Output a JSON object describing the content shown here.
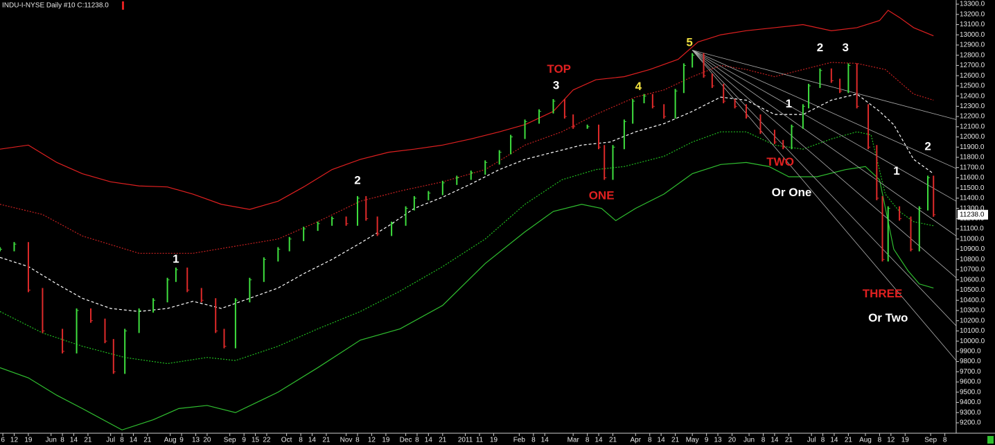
{
  "chart_data": {
    "type": "price",
    "title": "INDU-I-NYSE  Daily  #10 C:11238.0",
    "xlim": [
      0,
      337
    ],
    "ylim": [
      9098,
      13341
    ],
    "yticks": [
      {
        "value": 9200,
        "label": "9200.0"
      },
      {
        "value": 9300,
        "label": "9300.0"
      },
      {
        "value": 9400,
        "label": "9400.0"
      },
      {
        "value": 9500,
        "label": "9500.0"
      },
      {
        "value": 9600,
        "label": "9600.0"
      },
      {
        "value": 9700,
        "label": "9700.0"
      },
      {
        "value": 9800,
        "label": "9800.0"
      },
      {
        "value": 9900,
        "label": "9900.0"
      },
      {
        "value": 10000,
        "label": "10000.0"
      },
      {
        "value": 10100,
        "label": "10100.0"
      },
      {
        "value": 10200,
        "label": "10200.0"
      },
      {
        "value": 10300,
        "label": "10300.0"
      },
      {
        "value": 10400,
        "label": "10400.0"
      },
      {
        "value": 10500,
        "label": "10500.0"
      },
      {
        "value": 10600,
        "label": "10600.0"
      },
      {
        "value": 10700,
        "label": "10700.0"
      },
      {
        "value": 10800,
        "label": "10800.0"
      },
      {
        "value": 10900,
        "label": "10900.0"
      },
      {
        "value": 11000,
        "label": "11000.0"
      },
      {
        "value": 11100,
        "label": "11100.0"
      },
      {
        "value": 11200,
        "label": "11200.0"
      },
      {
        "value": 11300,
        "label": "11300.0"
      },
      {
        "value": 11400,
        "label": "11400.0"
      },
      {
        "value": 11500,
        "label": "11500.0"
      },
      {
        "value": 11600,
        "label": "11600.0"
      },
      {
        "value": 11700,
        "label": "11700.0"
      },
      {
        "value": 11800,
        "label": "11800.0"
      },
      {
        "value": 11900,
        "label": "11900.0"
      },
      {
        "value": 12000,
        "label": "12000.0"
      },
      {
        "value": 12100,
        "label": "12100.0"
      },
      {
        "value": 12200,
        "label": "12200.0"
      },
      {
        "value": 12300,
        "label": "12300.0"
      },
      {
        "value": 12400,
        "label": "12400.0"
      },
      {
        "value": 12500,
        "label": "12500.0"
      },
      {
        "value": 12600,
        "label": "12600.0"
      },
      {
        "value": 12700,
        "label": "12700.0"
      },
      {
        "value": 12800,
        "label": "12800.0"
      },
      {
        "value": 12900,
        "label": "12900.0"
      },
      {
        "value": 13000,
        "label": "13000.0"
      },
      {
        "value": 13100,
        "label": "13100.0"
      },
      {
        "value": 13200,
        "label": "13200.0"
      },
      {
        "value": 13300,
        "label": "13300.0"
      }
    ],
    "xticks": [
      {
        "value": 1,
        "label": "6"
      },
      {
        "value": 5,
        "label": "12"
      },
      {
        "value": 10,
        "label": "19"
      },
      {
        "value": 18,
        "label": "Jun"
      },
      {
        "value": 22,
        "label": "8"
      },
      {
        "value": 26,
        "label": "14"
      },
      {
        "value": 31,
        "label": "21"
      },
      {
        "value": 39,
        "label": "Jul"
      },
      {
        "value": 43,
        "label": "8"
      },
      {
        "value": 47,
        "label": "14"
      },
      {
        "value": 52,
        "label": "21"
      },
      {
        "value": 60,
        "label": "Aug"
      },
      {
        "value": 64,
        "label": "9"
      },
      {
        "value": 69,
        "label": "13"
      },
      {
        "value": 73,
        "label": "20"
      },
      {
        "value": 81,
        "label": "Sep"
      },
      {
        "value": 86,
        "label": "9"
      },
      {
        "value": 90,
        "label": "15"
      },
      {
        "value": 94,
        "label": "22"
      },
      {
        "value": 101,
        "label": "Oct"
      },
      {
        "value": 106,
        "label": "8"
      },
      {
        "value": 110,
        "label": "14"
      },
      {
        "value": 115,
        "label": "21"
      },
      {
        "value": 122,
        "label": "Nov"
      },
      {
        "value": 126,
        "label": "8"
      },
      {
        "value": 131,
        "label": "12"
      },
      {
        "value": 136,
        "label": "19"
      },
      {
        "value": 143,
        "label": "Dec"
      },
      {
        "value": 147,
        "label": "8"
      },
      {
        "value": 151,
        "label": "14"
      },
      {
        "value": 156,
        "label": "21"
      },
      {
        "value": 164,
        "label": "2011"
      },
      {
        "value": 169,
        "label": "11"
      },
      {
        "value": 174,
        "label": "19"
      },
      {
        "value": 183,
        "label": "Feb"
      },
      {
        "value": 188,
        "label": "8"
      },
      {
        "value": 192,
        "label": "14"
      },
      {
        "value": 202,
        "label": "Mar"
      },
      {
        "value": 207,
        "label": "8"
      },
      {
        "value": 211,
        "label": "14"
      },
      {
        "value": 216,
        "label": "21"
      },
      {
        "value": 224,
        "label": "Apr"
      },
      {
        "value": 229,
        "label": "8"
      },
      {
        "value": 233,
        "label": "14"
      },
      {
        "value": 238,
        "label": "21"
      },
      {
        "value": 244,
        "label": "May"
      },
      {
        "value": 249,
        "label": "9"
      },
      {
        "value": 253,
        "label": "13"
      },
      {
        "value": 258,
        "label": "20"
      },
      {
        "value": 264,
        "label": "Jun"
      },
      {
        "value": 269,
        "label": "8"
      },
      {
        "value": 273,
        "label": "14"
      },
      {
        "value": 278,
        "label": "21"
      },
      {
        "value": 286,
        "label": "Jul"
      },
      {
        "value": 290,
        "label": "8"
      },
      {
        "value": 294,
        "label": "14"
      },
      {
        "value": 299,
        "label": "21"
      },
      {
        "value": 305,
        "label": "Aug"
      },
      {
        "value": 310,
        "label": "8"
      },
      {
        "value": 314,
        "label": "12"
      },
      {
        "value": 319,
        "label": "19"
      },
      {
        "value": 328,
        "label": "Sep"
      },
      {
        "value": 333,
        "label": "8"
      }
    ],
    "close": {
      "up_color": "#3fe03f",
      "down_color": "#e02a2a",
      "x": [
        0,
        5,
        10,
        15,
        22,
        27,
        32,
        37,
        40,
        44,
        49,
        54,
        59,
        62,
        66,
        71,
        76,
        79,
        83,
        88,
        93,
        98,
        102,
        107,
        112,
        117,
        122,
        126,
        129,
        133,
        138,
        143,
        146,
        151,
        156,
        161,
        166,
        171,
        176,
        180,
        185,
        190,
        195,
        199,
        202,
        207,
        211,
        213,
        216,
        220,
        223,
        227,
        230,
        234,
        238,
        241,
        244,
        248,
        251,
        255,
        259,
        263,
        268,
        273,
        276,
        279,
        283,
        285,
        289,
        293,
        296,
        299,
        302,
        306,
        309,
        311,
        313,
        317,
        321,
        324,
        327,
        329
      ],
      "values": [
        10900,
        10950,
        10500,
        10100,
        9900,
        10300,
        10200,
        10000,
        9700,
        10100,
        10300,
        10400,
        10600,
        10700,
        10500,
        10400,
        10100,
        9950,
        10400,
        10600,
        10800,
        10900,
        11000,
        11100,
        11150,
        11200,
        11150,
        11400,
        11200,
        11050,
        11150,
        11300,
        11400,
        11450,
        11550,
        11600,
        11650,
        11750,
        11850,
        12000,
        12150,
        12250,
        12350,
        12200,
        12100,
        12100,
        11900,
        11600,
        11900,
        12150,
        12350,
        12400,
        12300,
        12200,
        12450,
        12700,
        12800,
        12600,
        12500,
        12350,
        12300,
        12200,
        12050,
        11950,
        11900,
        12100,
        12300,
        12500,
        12650,
        12550,
        12450,
        12700,
        12300,
        11900,
        11400,
        10800,
        11300,
        11200,
        10900,
        11300,
        11600,
        11238
      ]
    },
    "last_close": {
      "value": 11238,
      "label": "11238.0"
    },
    "bands": [
      {
        "color": "#e02020",
        "style": "solid",
        "x": [
          0,
          10,
          20,
          29,
          39,
          49,
          59,
          68,
          78,
          88,
          98,
          107,
          117,
          127,
          137,
          146,
          156,
          166,
          176,
          185,
          195,
          202,
          210,
          220,
          229,
          239,
          246,
          254,
          263,
          273,
          283,
          293,
          302,
          310,
          313,
          317,
          322,
          329
        ],
        "values": [
          11880,
          11920,
          11750,
          11640,
          11560,
          11520,
          11510,
          11440,
          11340,
          11290,
          11370,
          11510,
          11680,
          11780,
          11850,
          11880,
          11920,
          11980,
          12050,
          12120,
          12250,
          12460,
          12560,
          12590,
          12660,
          12760,
          12930,
          13000,
          13040,
          13070,
          13100,
          13040,
          13070,
          13140,
          13240,
          13170,
          13070,
          12990
        ]
      },
      {
        "color": "#c82020",
        "style": "dotted",
        "x": [
          0,
          15,
          29,
          49,
          68,
          83,
          98,
          112,
          127,
          141,
          156,
          171,
          185,
          198,
          210,
          224,
          234,
          244,
          254,
          263,
          273,
          283,
          293,
          302,
          312,
          322,
          329
        ],
        "values": [
          11340,
          11240,
          11030,
          10860,
          10860,
          10930,
          11000,
          11170,
          11370,
          11470,
          11560,
          11680,
          11920,
          12050,
          12220,
          12390,
          12460,
          12590,
          12700,
          12660,
          12590,
          12660,
          12730,
          12720,
          12660,
          12420,
          12360
        ]
      },
      {
        "color": "#ffffff",
        "style": "dashed",
        "x": [
          0,
          10,
          20,
          29,
          39,
          49,
          59,
          68,
          78,
          88,
          98,
          107,
          117,
          127,
          137,
          146,
          156,
          166,
          176,
          185,
          195,
          205,
          215,
          224,
          234,
          244,
          254,
          263,
          273,
          283,
          293,
          302,
          310,
          315,
          322,
          329
        ],
        "values": [
          10820,
          10730,
          10560,
          10420,
          10320,
          10290,
          10320,
          10390,
          10320,
          10420,
          10520,
          10660,
          10800,
          10960,
          11130,
          11300,
          11410,
          11540,
          11680,
          11780,
          11850,
          11920,
          11950,
          12050,
          12130,
          12250,
          12390,
          12360,
          12220,
          12220,
          12360,
          12420,
          12250,
          12120,
          11780,
          11640
        ]
      },
      {
        "color": "#20c020",
        "style": "dotted",
        "x": [
          0,
          15,
          29,
          44,
          59,
          73,
          83,
          98,
          112,
          127,
          141,
          156,
          171,
          185,
          198,
          210,
          220,
          234,
          244,
          254,
          263,
          273,
          283,
          293,
          302,
          307,
          312,
          317,
          322,
          329
        ],
        "values": [
          10290,
          10080,
          9950,
          9840,
          9780,
          9840,
          9810,
          9950,
          10120,
          10290,
          10490,
          10730,
          11000,
          11340,
          11580,
          11680,
          11710,
          11810,
          11950,
          12050,
          12050,
          11920,
          11880,
          11980,
          12050,
          12020,
          11440,
          11270,
          11170,
          11130
        ]
      },
      {
        "color": "#30c030",
        "style": "solid",
        "x": [
          0,
          10,
          20,
          29,
          43,
          54,
          63,
          73,
          83,
          98,
          112,
          127,
          141,
          156,
          171,
          185,
          195,
          205,
          212,
          217,
          224,
          234,
          244,
          254,
          263,
          271,
          278,
          288,
          298,
          305,
          310,
          315,
          320,
          324,
          329
        ],
        "values": [
          9740,
          9640,
          9470,
          9340,
          9130,
          9230,
          9340,
          9370,
          9300,
          9500,
          9740,
          10010,
          10120,
          10350,
          10760,
          11070,
          11270,
          11340,
          11300,
          11180,
          11300,
          11440,
          11640,
          11730,
          11750,
          11710,
          11610,
          11610,
          11680,
          11710,
          11580,
          10900,
          10690,
          10560,
          10520
        ]
      }
    ],
    "fan_lines": {
      "color": "#b0b0b0",
      "origin": {
        "x": 244,
        "y": 12850
      },
      "ends": [
        {
          "x": 337,
          "y": 12170
        },
        {
          "x": 337,
          "y": 11690
        },
        {
          "x": 337,
          "y": 11370
        },
        {
          "x": 337,
          "y": 11030
        },
        {
          "x": 337,
          "y": 10620
        },
        {
          "x": 337,
          "y": 10150
        },
        {
          "x": 337,
          "y": 9810
        }
      ]
    },
    "annotations": [
      {
        "text": "1",
        "color": "#ffffff",
        "x": 62,
        "y": 10800
      },
      {
        "text": "2",
        "color": "#ffffff",
        "x": 126,
        "y": 11570
      },
      {
        "text": "TOP",
        "color": "#e02020",
        "x": 197,
        "y": 12660
      },
      {
        "text": "3",
        "color": "#ffffff",
        "x": 196,
        "y": 12500
      },
      {
        "text": "ONE",
        "color": "#e02020",
        "x": 212,
        "y": 11420
      },
      {
        "text": "4",
        "color": "#f0e040",
        "x": 225,
        "y": 12490
      },
      {
        "text": "5",
        "color": "#f0e040",
        "x": 243,
        "y": 12920
      },
      {
        "text": "1",
        "color": "#ffffff",
        "x": 278,
        "y": 12320
      },
      {
        "text": "TWO",
        "color": "#e02020",
        "x": 275,
        "y": 11750
      },
      {
        "text": "Or One",
        "color": "#ffffff",
        "x": 279,
        "y": 11450
      },
      {
        "text": "2",
        "color": "#ffffff",
        "x": 289,
        "y": 12870
      },
      {
        "text": "3",
        "color": "#ffffff",
        "x": 298,
        "y": 12870
      },
      {
        "text": "1",
        "color": "#ffffff",
        "x": 316,
        "y": 11660
      },
      {
        "text": "2",
        "color": "#ffffff",
        "x": 327,
        "y": 11900
      },
      {
        "text": "THREE",
        "color": "#e02020",
        "x": 311,
        "y": 10460
      },
      {
        "text": "Or Two",
        "color": "#ffffff",
        "x": 313,
        "y": 10220
      }
    ]
  }
}
